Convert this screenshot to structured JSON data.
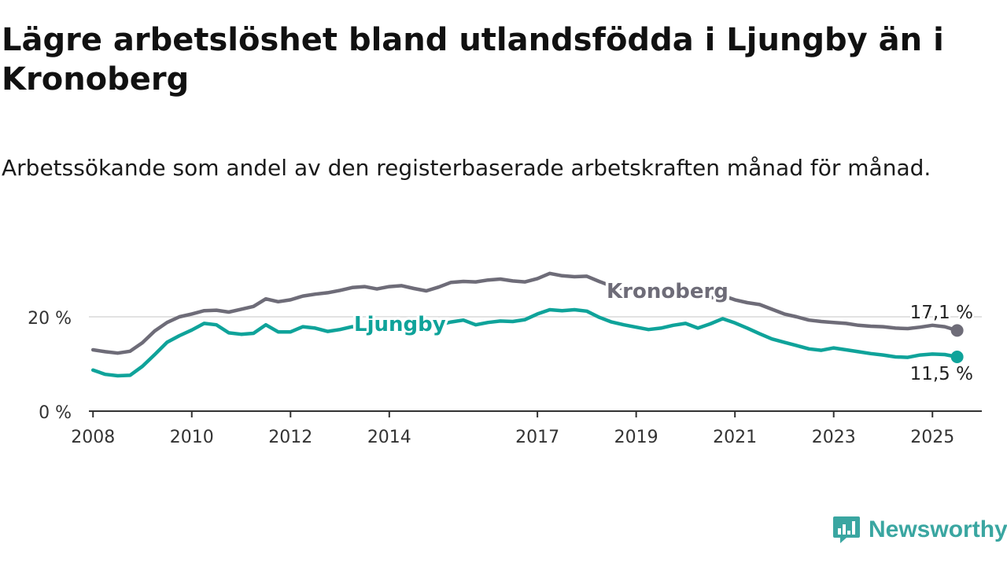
{
  "title": "Lägre arbetslöshet bland utlandsfödda i Ljungby än i Kronoberg",
  "subtitle": "Arbetssökande som andel av den registerbaserade arbetskraften månad för månad.",
  "brand": {
    "name": "Newsworthy",
    "icon": "newsworthy-logo-icon"
  },
  "chart_data": {
    "type": "line",
    "title": "Lägre arbetslöshet bland utlandsfödda i Ljungby än i Kronoberg",
    "subtitle": "Arbetssökande som andel av den registerbaserade arbetskraften månad för månad.",
    "xlabel": "",
    "ylabel": "",
    "x_ticks": [
      "2008",
      "2010",
      "2012",
      "2014",
      "2017",
      "2019",
      "2021",
      "2023",
      "2025"
    ],
    "y_ticks": [
      "0 %",
      "20 %"
    ],
    "ylim": [
      0,
      30
    ],
    "xlim": [
      "2007-12",
      "2026-01"
    ],
    "grid": "horizontal gridline at 20 %",
    "legend": "direct labels on lines",
    "series": [
      {
        "name": "Kronoberg",
        "color": "#6e6c78",
        "end_label": "17,1 %",
        "points": [
          [
            "2008-01",
            13.0
          ],
          [
            "2008-04",
            12.6
          ],
          [
            "2008-07",
            12.3
          ],
          [
            "2008-10",
            12.7
          ],
          [
            "2009-01",
            14.5
          ],
          [
            "2009-04",
            17.0
          ],
          [
            "2009-07",
            18.8
          ],
          [
            "2009-10",
            20.0
          ],
          [
            "2010-01",
            20.6
          ],
          [
            "2010-04",
            21.3
          ],
          [
            "2010-07",
            21.4
          ],
          [
            "2010-10",
            21.0
          ],
          [
            "2011-01",
            21.6
          ],
          [
            "2011-04",
            22.2
          ],
          [
            "2011-07",
            23.8
          ],
          [
            "2011-10",
            23.2
          ],
          [
            "2012-01",
            23.6
          ],
          [
            "2012-04",
            24.4
          ],
          [
            "2012-07",
            24.8
          ],
          [
            "2012-10",
            25.1
          ],
          [
            "2013-01",
            25.6
          ],
          [
            "2013-04",
            26.2
          ],
          [
            "2013-07",
            26.4
          ],
          [
            "2013-10",
            25.9
          ],
          [
            "2014-01",
            26.4
          ],
          [
            "2014-04",
            26.6
          ],
          [
            "2014-07",
            26.0
          ],
          [
            "2014-10",
            25.5
          ],
          [
            "2015-01",
            26.3
          ],
          [
            "2015-04",
            27.3
          ],
          [
            "2015-07",
            27.5
          ],
          [
            "2015-10",
            27.4
          ],
          [
            "2016-01",
            27.8
          ],
          [
            "2016-04",
            28.0
          ],
          [
            "2016-07",
            27.6
          ],
          [
            "2016-10",
            27.4
          ],
          [
            "2017-01",
            28.1
          ],
          [
            "2017-04",
            29.2
          ],
          [
            "2017-07",
            28.7
          ],
          [
            "2017-10",
            28.5
          ],
          [
            "2018-01",
            28.6
          ],
          [
            "2018-04",
            27.5
          ],
          [
            "2018-07",
            26.5
          ],
          [
            "2018-10",
            25.9
          ],
          [
            "2019-01",
            25.3
          ],
          [
            "2019-04",
            25.1
          ],
          [
            "2019-07",
            24.8
          ],
          [
            "2019-10",
            24.2
          ],
          [
            "2020-01",
            24.6
          ],
          [
            "2020-04",
            24.3
          ],
          [
            "2020-07",
            24.0
          ],
          [
            "2020-10",
            24.5
          ],
          [
            "2021-01",
            23.6
          ],
          [
            "2021-04",
            23.0
          ],
          [
            "2021-07",
            22.6
          ],
          [
            "2021-10",
            21.6
          ],
          [
            "2022-01",
            20.6
          ],
          [
            "2022-04",
            20.0
          ],
          [
            "2022-07",
            19.3
          ],
          [
            "2022-10",
            19.0
          ],
          [
            "2023-01",
            18.8
          ],
          [
            "2023-04",
            18.6
          ],
          [
            "2023-07",
            18.2
          ],
          [
            "2023-10",
            18.0
          ],
          [
            "2024-01",
            17.9
          ],
          [
            "2024-04",
            17.6
          ],
          [
            "2024-07",
            17.5
          ],
          [
            "2024-10",
            17.8
          ],
          [
            "2025-01",
            18.2
          ],
          [
            "2025-04",
            17.9
          ],
          [
            "2025-07",
            17.1
          ]
        ]
      },
      {
        "name": "Ljungby",
        "color": "#0fa39a",
        "end_label": "11,5 %",
        "points": [
          [
            "2008-01",
            8.7
          ],
          [
            "2008-04",
            7.8
          ],
          [
            "2008-07",
            7.5
          ],
          [
            "2008-10",
            7.6
          ],
          [
            "2009-01",
            9.5
          ],
          [
            "2009-04",
            12.0
          ],
          [
            "2009-07",
            14.6
          ],
          [
            "2009-10",
            16.0
          ],
          [
            "2010-01",
            17.2
          ],
          [
            "2010-04",
            18.6
          ],
          [
            "2010-07",
            18.3
          ],
          [
            "2010-10",
            16.6
          ],
          [
            "2011-01",
            16.3
          ],
          [
            "2011-04",
            16.5
          ],
          [
            "2011-07",
            18.3
          ],
          [
            "2011-10",
            16.8
          ],
          [
            "2012-01",
            16.8
          ],
          [
            "2012-04",
            17.9
          ],
          [
            "2012-07",
            17.6
          ],
          [
            "2012-10",
            16.9
          ],
          [
            "2013-01",
            17.3
          ],
          [
            "2013-04",
            17.9
          ],
          [
            "2013-07",
            17.8
          ],
          [
            "2013-10",
            17.5
          ],
          [
            "2014-01",
            17.4
          ],
          [
            "2014-04",
            17.0
          ],
          [
            "2014-07",
            16.6
          ],
          [
            "2014-10",
            17.4
          ],
          [
            "2015-01",
            18.3
          ],
          [
            "2015-04",
            18.9
          ],
          [
            "2015-07",
            19.3
          ],
          [
            "2015-10",
            18.3
          ],
          [
            "2016-01",
            18.8
          ],
          [
            "2016-04",
            19.1
          ],
          [
            "2016-07",
            19.0
          ],
          [
            "2016-10",
            19.4
          ],
          [
            "2017-01",
            20.6
          ],
          [
            "2017-04",
            21.5
          ],
          [
            "2017-07",
            21.3
          ],
          [
            "2017-10",
            21.5
          ],
          [
            "2018-01",
            21.2
          ],
          [
            "2018-04",
            19.9
          ],
          [
            "2018-07",
            18.9
          ],
          [
            "2018-10",
            18.3
          ],
          [
            "2019-01",
            17.8
          ],
          [
            "2019-04",
            17.3
          ],
          [
            "2019-07",
            17.6
          ],
          [
            "2019-10",
            18.2
          ],
          [
            "2020-01",
            18.6
          ],
          [
            "2020-04",
            17.6
          ],
          [
            "2020-07",
            18.5
          ],
          [
            "2020-10",
            19.6
          ],
          [
            "2021-01",
            18.7
          ],
          [
            "2021-04",
            17.6
          ],
          [
            "2021-07",
            16.4
          ],
          [
            "2021-10",
            15.3
          ],
          [
            "2022-01",
            14.6
          ],
          [
            "2022-04",
            13.9
          ],
          [
            "2022-07",
            13.2
          ],
          [
            "2022-10",
            12.9
          ],
          [
            "2023-01",
            13.4
          ],
          [
            "2023-04",
            13.0
          ],
          [
            "2023-07",
            12.6
          ],
          [
            "2023-10",
            12.2
          ],
          [
            "2024-01",
            11.9
          ],
          [
            "2024-04",
            11.5
          ],
          [
            "2024-07",
            11.4
          ],
          [
            "2024-10",
            11.9
          ],
          [
            "2025-01",
            12.1
          ],
          [
            "2025-04",
            12.0
          ],
          [
            "2025-07",
            11.5
          ]
        ]
      }
    ]
  }
}
